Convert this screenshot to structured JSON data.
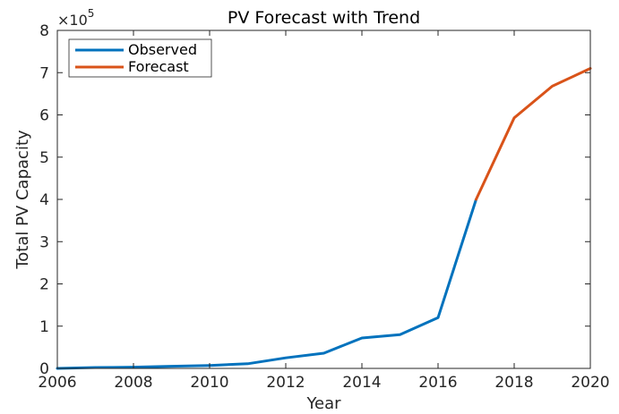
{
  "chart_data": {
    "type": "line",
    "title": "PV Forecast with Trend",
    "xlabel": "Year",
    "ylabel": "Total PV Capacity",
    "y_exponent": {
      "base": "×10",
      "power": "5"
    },
    "xlim": [
      2006,
      2020
    ],
    "ylim": [
      0,
      8
    ],
    "x_ticks": [
      2006,
      2008,
      2010,
      2012,
      2014,
      2016,
      2018,
      2020
    ],
    "y_ticks": [
      0,
      1,
      2,
      3,
      4,
      5,
      6,
      7,
      8
    ],
    "grid": false,
    "legend_placement": "top-left",
    "series": [
      {
        "name": "Observed",
        "color": "#0072BD",
        "x": [
          2006,
          2007,
          2008,
          2009,
          2010,
          2011,
          2012,
          2013,
          2014,
          2015,
          2016,
          2017
        ],
        "y": [
          0.0,
          0.02,
          0.03,
          0.05,
          0.07,
          0.11,
          0.25,
          0.36,
          0.72,
          0.8,
          1.2,
          4.0
        ]
      },
      {
        "name": "Forecast",
        "color": "#D95319",
        "x": [
          2017,
          2018,
          2019,
          2020
        ],
        "y": [
          4.0,
          5.93,
          6.68,
          7.1
        ]
      }
    ]
  }
}
